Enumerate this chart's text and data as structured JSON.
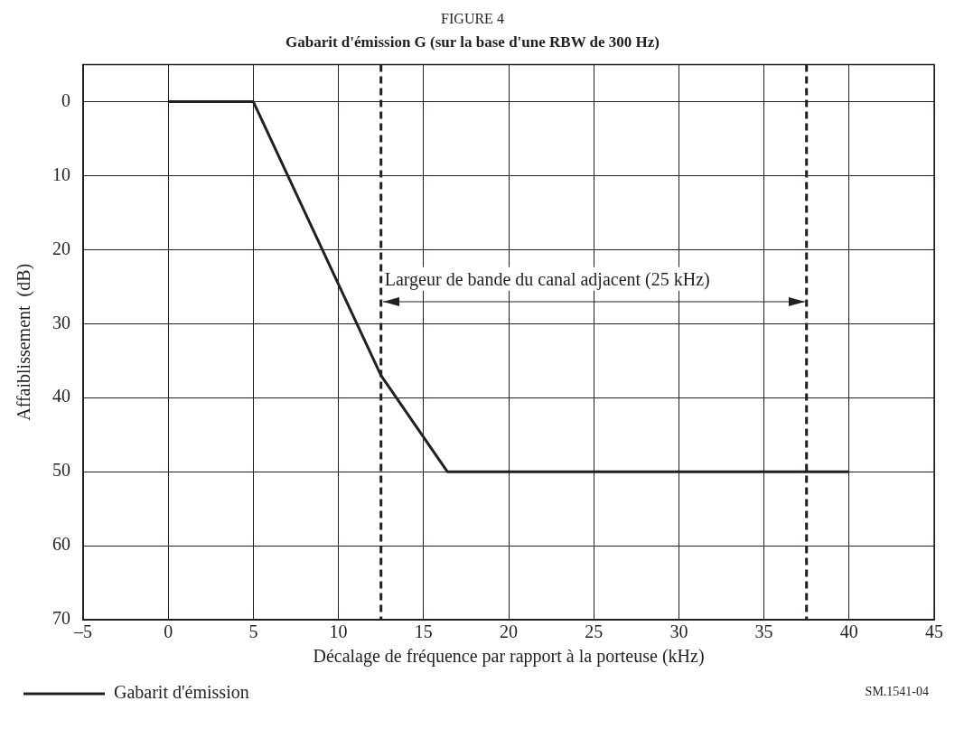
{
  "chart_data": {
    "type": "line",
    "title": "FIGURE 4",
    "subtitle": "Gabarit d'émission G (sur la base d'une RBW de 300 Hz)",
    "xlabel": "Décalage de fréquence par rapport à la porteuse (kHz)",
    "ylabel": "Affaiblissement  (dB)",
    "x": [
      0,
      5,
      12.5,
      16.4,
      40
    ],
    "series": [
      {
        "name": "Gabarit d'émission",
        "color": "#231f20",
        "values": [
          0,
          0,
          37,
          50,
          50
        ]
      }
    ],
    "xlim": [
      -5,
      45
    ],
    "xticks": [
      {
        "value": -5,
        "label": "–5"
      },
      0,
      5,
      10,
      15,
      20,
      25,
      30,
      35,
      40,
      45
    ],
    "ylim": [
      70,
      -5
    ],
    "yticks": [
      0,
      10,
      20,
      30,
      40,
      50,
      60,
      70
    ],
    "grid": true,
    "legend": "bottom left",
    "marker": "none",
    "line_style": "solid",
    "ref_lines": [
      {
        "axis": "x",
        "value": 12.5,
        "line_style": "dashed",
        "color": "#231f20"
      },
      {
        "axis": "x",
        "value": 37.5,
        "line_style": "dashed",
        "color": "#231f20"
      }
    ],
    "annotations": [
      {
        "text": "Largeur de bande du canal adjacent (25 kHz)",
        "x": 12.5,
        "y": 27
      },
      "SM.1541-04"
    ]
  }
}
